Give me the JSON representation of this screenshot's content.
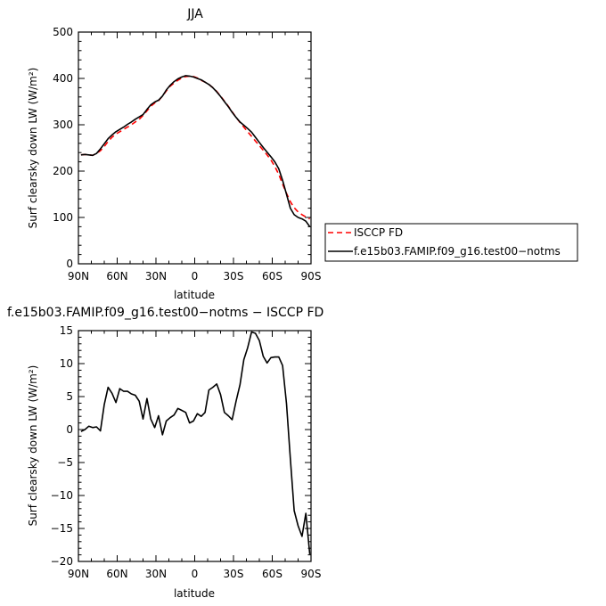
{
  "chart_data": [
    {
      "type": "line",
      "title": "JJA",
      "xlabel": "latitude",
      "ylabel": "Surf clearsky down LW (W/m²)",
      "xlim": [
        90,
        -90
      ],
      "ylim": [
        0,
        500
      ],
      "xticks": [
        90,
        60,
        30,
        0,
        -30,
        -60,
        -90
      ],
      "xtick_labels": [
        "90N",
        "60N",
        "30N",
        "0",
        "30S",
        "60S",
        "90S"
      ],
      "yticks": [
        0,
        100,
        200,
        300,
        400,
        500
      ],
      "ytick_labels": [
        "0",
        "100",
        "200",
        "300",
        "400",
        "500"
      ],
      "legend_position": "right",
      "series": [
        {
          "name": "ISCCP FD",
          "color": "#ff0000",
          "dash": "dashed",
          "x": [
            88,
            85,
            82,
            79,
            76,
            73,
            70,
            67,
            64,
            61,
            58,
            55,
            52,
            49,
            46,
            43,
            40,
            37,
            34,
            31,
            28,
            25,
            22,
            19,
            16,
            13,
            10,
            7,
            4,
            1,
            -2,
            -5,
            -8,
            -11,
            -14,
            -17,
            -20,
            -23,
            -26,
            -29,
            -32,
            -35,
            -38,
            -41,
            -44,
            -47,
            -50,
            -53,
            -56,
            -59,
            -62,
            -65,
            -68,
            -71,
            -74,
            -77,
            -80,
            -83,
            -86,
            -89
          ],
          "y": [
            235,
            236,
            235,
            234,
            238,
            244,
            253,
            264,
            273,
            280,
            285,
            290,
            295,
            300,
            306,
            312,
            320,
            330,
            340,
            347,
            352,
            362,
            373,
            383,
            390,
            396,
            401,
            404,
            405,
            404,
            401,
            396,
            392,
            387,
            380,
            372,
            362,
            351,
            340,
            328,
            316,
            305,
            295,
            285,
            275,
            265,
            255,
            245,
            235,
            224,
            210,
            193,
            172,
            152,
            134,
            121,
            112,
            106,
            101,
            97
          ]
        },
        {
          "name": "f.e15b03.FAMIP.f09_g16.test00−notms",
          "color": "#000000",
          "dash": "solid",
          "x": [
            88,
            85,
            82,
            79,
            76,
            73,
            70,
            67,
            64,
            61,
            58,
            55,
            52,
            49,
            46,
            43,
            40,
            37,
            34,
            31,
            28,
            25,
            22,
            19,
            16,
            13,
            10,
            7,
            4,
            1,
            -2,
            -5,
            -8,
            -11,
            -14,
            -17,
            -20,
            -23,
            -26,
            -29,
            -32,
            -35,
            -38,
            -41,
            -44,
            -47,
            -50,
            -53,
            -56,
            -59,
            -62,
            -65,
            -68,
            -71,
            -74,
            -77,
            -80,
            -83,
            -86,
            -89
          ],
          "y": [
            235,
            236,
            235,
            234,
            238,
            248,
            259,
            270,
            278,
            285,
            290,
            295,
            301,
            306,
            312,
            317,
            322,
            333,
            343,
            349,
            353,
            362,
            375,
            385,
            393,
            399,
            403,
            406,
            405,
            403,
            400,
            397,
            392,
            387,
            380,
            371,
            361,
            350,
            339,
            327,
            316,
            306,
            299,
            292,
            284,
            273,
            262,
            251,
            241,
            231,
            220,
            205,
            180,
            150,
            120,
            106,
            100,
            97,
            92,
            80
          ]
        }
      ]
    },
    {
      "type": "line",
      "title": "f.e15b03.FAMIP.f09_g16.test00−notms − ISCCP FD",
      "xlabel": "latitude",
      "ylabel": "Surf clearsky down LW (W/m²)",
      "xlim": [
        90,
        -90
      ],
      "ylim": [
        -20,
        15
      ],
      "xticks": [
        90,
        60,
        30,
        0,
        -30,
        -60,
        -90
      ],
      "xtick_labels": [
        "90N",
        "60N",
        "30N",
        "0",
        "30S",
        "60S",
        "90S"
      ],
      "yticks": [
        -20,
        -15,
        -10,
        -5,
        0,
        5,
        10,
        15
      ],
      "ytick_labels": [
        "−20",
        "−15",
        "−10",
        "−5",
        "0",
        "5",
        "10",
        "15"
      ],
      "series": [
        {
          "color": "#000000",
          "dash": "solid",
          "x": [
            88,
            85,
            82,
            79,
            76,
            73,
            70,
            67,
            64,
            61,
            58,
            55,
            52,
            49,
            46,
            43,
            40,
            37,
            34,
            31,
            28,
            25,
            22,
            19,
            16,
            13,
            10,
            7,
            4,
            1,
            -2,
            -5,
            -8,
            -11,
            -14,
            -17,
            -20,
            -23,
            -26,
            -29,
            -32,
            -35,
            -38,
            -41,
            -44,
            -47,
            -50,
            -53,
            -56,
            -59,
            -62,
            -65,
            -68,
            -71,
            -74,
            -77,
            -80,
            -83,
            -86,
            -89
          ],
          "y": [
            -0.3,
            0.0,
            0.5,
            0.3,
            0.4,
            -0.2,
            3.8,
            6.4,
            5.5,
            4.1,
            6.2,
            5.8,
            5.8,
            5.4,
            5.2,
            4.3,
            1.6,
            4.7,
            1.6,
            0.3,
            2.1,
            -0.8,
            1.3,
            1.8,
            2.2,
            3.2,
            2.9,
            2.6,
            1.0,
            1.3,
            2.4,
            2.0,
            2.6,
            6.0,
            6.4,
            6.9,
            5.3,
            2.6,
            2.1,
            1.5,
            4.3,
            6.8,
            10.6,
            12.4,
            14.8,
            14.6,
            13.5,
            11.1,
            10.1,
            10.9,
            11.0,
            11.0,
            9.7,
            3.9,
            -4.4,
            -12.3,
            -14.6,
            -16.2,
            -12.7,
            -18.9
          ]
        }
      ]
    }
  ]
}
